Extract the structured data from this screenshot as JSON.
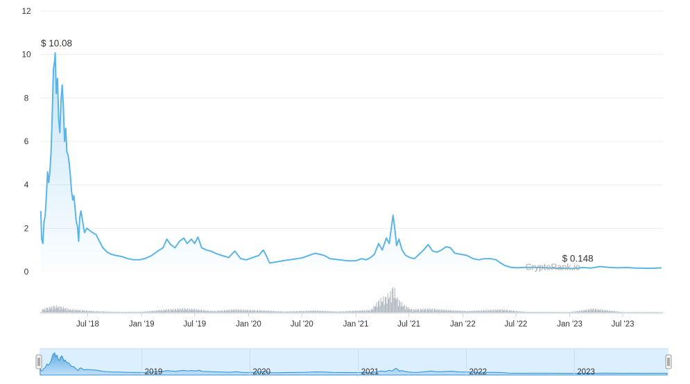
{
  "chart_data": {
    "type": "area",
    "watermark": "CryptoRank.io",
    "ylim": [
      0,
      12
    ],
    "yticks": [
      0,
      2,
      4,
      6,
      8,
      10,
      12
    ],
    "xlim": [
      "2018-01-20",
      "2023-11-15"
    ],
    "xticks": [
      {
        "date": "2018-07-01",
        "label": "Jul '18"
      },
      {
        "date": "2019-01-01",
        "label": "Jan '19"
      },
      {
        "date": "2019-07-01",
        "label": "Jul '19"
      },
      {
        "date": "2020-01-01",
        "label": "Jan '20"
      },
      {
        "date": "2020-07-01",
        "label": "Jul '20"
      },
      {
        "date": "2021-01-01",
        "label": "Jan '21"
      },
      {
        "date": "2021-07-01",
        "label": "Jul '21"
      },
      {
        "date": "2022-01-01",
        "label": "Jan '22"
      },
      {
        "date": "2022-07-01",
        "label": "Jul '22"
      },
      {
        "date": "2023-01-01",
        "label": "Jan '23"
      },
      {
        "date": "2023-07-01",
        "label": "Jul '23"
      }
    ],
    "navigator_ticks": [
      {
        "date": "2019-01-01",
        "label": "2019"
      },
      {
        "date": "2020-01-01",
        "label": "2020"
      },
      {
        "date": "2021-01-01",
        "label": "2021"
      },
      {
        "date": "2022-01-01",
        "label": "2022"
      },
      {
        "date": "2023-01-01",
        "label": "2023"
      }
    ],
    "annotations": [
      {
        "label": "$ 10.08",
        "date": "2018-03-12",
        "value": 10.08
      },
      {
        "label": "$ 0.148",
        "date": "2023-01-14",
        "value": 0.148
      }
    ],
    "series": [
      {
        "color": "#5ab4e6",
        "points": [
          [
            "2018-01-22",
            2.8
          ],
          [
            "2018-01-25",
            1.5
          ],
          [
            "2018-01-29",
            1.3
          ],
          [
            "2018-02-02",
            2.3
          ],
          [
            "2018-02-06",
            2.6
          ],
          [
            "2018-02-10",
            3.5
          ],
          [
            "2018-02-14",
            4.6
          ],
          [
            "2018-02-18",
            4.1
          ],
          [
            "2018-02-22",
            4.6
          ],
          [
            "2018-02-26",
            5.5
          ],
          [
            "2018-03-02",
            7.2
          ],
          [
            "2018-03-06",
            9.3
          ],
          [
            "2018-03-10",
            9.7
          ],
          [
            "2018-03-12",
            10.08
          ],
          [
            "2018-03-16",
            8.2
          ],
          [
            "2018-03-20",
            8.9
          ],
          [
            "2018-03-24",
            7.0
          ],
          [
            "2018-03-28",
            6.4
          ],
          [
            "2018-04-01",
            7.9
          ],
          [
            "2018-04-05",
            8.6
          ],
          [
            "2018-04-09",
            7.6
          ],
          [
            "2018-04-13",
            6.0
          ],
          [
            "2018-04-17",
            6.6
          ],
          [
            "2018-04-21",
            5.5
          ],
          [
            "2018-04-25",
            5.4
          ],
          [
            "2018-04-29",
            5.0
          ],
          [
            "2018-05-03",
            4.4
          ],
          [
            "2018-05-07",
            3.7
          ],
          [
            "2018-05-11",
            3.3
          ],
          [
            "2018-05-15",
            3.5
          ],
          [
            "2018-05-19",
            2.9
          ],
          [
            "2018-05-23",
            2.3
          ],
          [
            "2018-05-27",
            2.1
          ],
          [
            "2018-05-31",
            1.4
          ],
          [
            "2018-06-04",
            2.5
          ],
          [
            "2018-06-08",
            2.8
          ],
          [
            "2018-06-14",
            2.3
          ],
          [
            "2018-06-20",
            1.8
          ],
          [
            "2018-06-28",
            2.0
          ],
          [
            "2018-07-08",
            1.9
          ],
          [
            "2018-07-18",
            1.8
          ],
          [
            "2018-07-30",
            1.7
          ],
          [
            "2018-08-10",
            1.4
          ],
          [
            "2018-08-22",
            1.1
          ],
          [
            "2018-09-05",
            0.9
          ],
          [
            "2018-09-20",
            0.8
          ],
          [
            "2018-10-05",
            0.75
          ],
          [
            "2018-10-25",
            0.7
          ],
          [
            "2018-11-15",
            0.6
          ],
          [
            "2018-12-05",
            0.55
          ],
          [
            "2018-12-25",
            0.55
          ],
          [
            "2019-01-15",
            0.62
          ],
          [
            "2019-02-05",
            0.75
          ],
          [
            "2019-02-25",
            0.95
          ],
          [
            "2019-03-15",
            1.1
          ],
          [
            "2019-03-28",
            1.5
          ],
          [
            "2019-04-10",
            1.25
          ],
          [
            "2019-04-25",
            1.1
          ],
          [
            "2019-05-10",
            1.4
          ],
          [
            "2019-05-25",
            1.55
          ],
          [
            "2019-06-05",
            1.3
          ],
          [
            "2019-06-20",
            1.5
          ],
          [
            "2019-07-01",
            1.3
          ],
          [
            "2019-07-12",
            1.6
          ],
          [
            "2019-07-25",
            1.1
          ],
          [
            "2019-08-10",
            1.0
          ],
          [
            "2019-08-25",
            0.95
          ],
          [
            "2019-09-10",
            0.85
          ],
          [
            "2019-10-01",
            0.75
          ],
          [
            "2019-10-25",
            0.65
          ],
          [
            "2019-11-15",
            0.95
          ],
          [
            "2019-12-05",
            0.6
          ],
          [
            "2019-12-25",
            0.55
          ],
          [
            "2020-01-15",
            0.65
          ],
          [
            "2020-02-05",
            0.75
          ],
          [
            "2020-02-20",
            1.0
          ],
          [
            "2020-03-01",
            0.75
          ],
          [
            "2020-03-13",
            0.4
          ],
          [
            "2020-04-05",
            0.45
          ],
          [
            "2020-04-25",
            0.5
          ],
          [
            "2020-05-20",
            0.55
          ],
          [
            "2020-06-15",
            0.6
          ],
          [
            "2020-07-05",
            0.65
          ],
          [
            "2020-07-25",
            0.75
          ],
          [
            "2020-08-15",
            0.85
          ],
          [
            "2020-08-30",
            0.8
          ],
          [
            "2020-09-15",
            0.75
          ],
          [
            "2020-10-05",
            0.6
          ],
          [
            "2020-11-05",
            0.55
          ],
          [
            "2020-12-05",
            0.5
          ],
          [
            "2021-01-01",
            0.5
          ],
          [
            "2021-01-20",
            0.6
          ],
          [
            "2021-02-05",
            0.55
          ],
          [
            "2021-02-20",
            0.65
          ],
          [
            "2021-03-05",
            0.8
          ],
          [
            "2021-03-20",
            1.3
          ],
          [
            "2021-04-01",
            1.0
          ],
          [
            "2021-04-15",
            1.55
          ],
          [
            "2021-04-25",
            1.3
          ],
          [
            "2021-05-01",
            1.9
          ],
          [
            "2021-05-08",
            2.6
          ],
          [
            "2021-05-14",
            2.0
          ],
          [
            "2021-05-20",
            1.2
          ],
          [
            "2021-05-28",
            1.5
          ],
          [
            "2021-06-08",
            1.0
          ],
          [
            "2021-06-20",
            0.75
          ],
          [
            "2021-07-05",
            0.65
          ],
          [
            "2021-07-20",
            0.6
          ],
          [
            "2021-08-05",
            0.8
          ],
          [
            "2021-08-20",
            1.0
          ],
          [
            "2021-09-05",
            1.25
          ],
          [
            "2021-09-20",
            0.95
          ],
          [
            "2021-10-05",
            0.9
          ],
          [
            "2021-10-20",
            1.0
          ],
          [
            "2021-11-05",
            1.15
          ],
          [
            "2021-11-20",
            1.1
          ],
          [
            "2021-12-05",
            0.85
          ],
          [
            "2021-12-25",
            0.8
          ],
          [
            "2022-01-15",
            0.75
          ],
          [
            "2022-02-05",
            0.6
          ],
          [
            "2022-02-25",
            0.55
          ],
          [
            "2022-03-15",
            0.6
          ],
          [
            "2022-04-05",
            0.6
          ],
          [
            "2022-04-25",
            0.55
          ],
          [
            "2022-05-10",
            0.4
          ],
          [
            "2022-05-25",
            0.28
          ],
          [
            "2022-06-15",
            0.2
          ],
          [
            "2022-07-05",
            0.18
          ],
          [
            "2022-08-01",
            0.2
          ],
          [
            "2022-09-01",
            0.2
          ],
          [
            "2022-10-01",
            0.19
          ],
          [
            "2022-11-01",
            0.17
          ],
          [
            "2022-12-01",
            0.16
          ],
          [
            "2023-01-14",
            0.148
          ],
          [
            "2023-02-15",
            0.19
          ],
          [
            "2023-03-15",
            0.17
          ],
          [
            "2023-04-15",
            0.24
          ],
          [
            "2023-05-15",
            0.2
          ],
          [
            "2023-06-15",
            0.18
          ],
          [
            "2023-07-15",
            0.19
          ],
          [
            "2023-08-15",
            0.17
          ],
          [
            "2023-09-15",
            0.16
          ],
          [
            "2023-10-15",
            0.16
          ],
          [
            "2023-11-10",
            0.18
          ]
        ]
      }
    ],
    "volume": {
      "color": "#aab3bd",
      "max": 1,
      "points": [
        [
          "2018-01-25",
          0.12
        ],
        [
          "2018-02-10",
          0.18
        ],
        [
          "2018-03-12",
          0.25
        ],
        [
          "2018-04-05",
          0.2
        ],
        [
          "2018-05-01",
          0.12
        ],
        [
          "2018-06-05",
          0.1
        ],
        [
          "2018-08-01",
          0.05
        ],
        [
          "2018-10-01",
          0.03
        ],
        [
          "2019-01-01",
          0.03
        ],
        [
          "2019-03-28",
          0.12
        ],
        [
          "2019-05-20",
          0.15
        ],
        [
          "2019-07-01",
          0.13
        ],
        [
          "2019-09-01",
          0.06
        ],
        [
          "2019-11-15",
          0.12
        ],
        [
          "2020-02-20",
          0.08
        ],
        [
          "2020-05-01",
          0.04
        ],
        [
          "2020-08-15",
          0.08
        ],
        [
          "2020-11-01",
          0.04
        ],
        [
          "2021-02-20",
          0.1
        ],
        [
          "2021-03-20",
          0.45
        ],
        [
          "2021-04-15",
          0.6
        ],
        [
          "2021-05-01",
          0.75
        ],
        [
          "2021-05-08",
          1.0
        ],
        [
          "2021-05-20",
          0.55
        ],
        [
          "2021-06-10",
          0.3
        ],
        [
          "2021-07-10",
          0.12
        ],
        [
          "2021-09-05",
          0.15
        ],
        [
          "2021-11-05",
          0.1
        ],
        [
          "2022-01-15",
          0.06
        ],
        [
          "2022-05-12",
          0.12
        ],
        [
          "2022-08-01",
          0.03
        ],
        [
          "2023-01-01",
          0.02
        ],
        [
          "2023-03-20",
          0.15
        ],
        [
          "2023-07-01",
          0.02
        ],
        [
          "2023-11-01",
          0.02
        ]
      ]
    }
  }
}
